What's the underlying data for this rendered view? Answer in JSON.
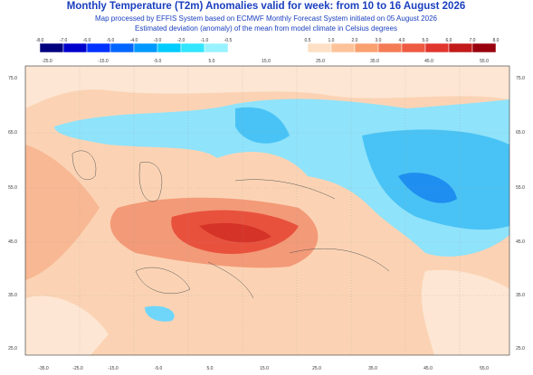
{
  "header": {
    "title": "Monthly Temperature (T2m) Anomalies valid for week: from 10 to 16 August 2026",
    "subtitle": "Map processed by EFFIS System based on ECMWF Monthly Forecast System initiated on 05 August 2026",
    "description": "Estimated deviation (anomaly) of the mean from model climate in Celsius degrees"
  },
  "legend": {
    "negative": [
      "-8.0",
      "-7.0",
      "-6.0",
      "-5.0",
      "-4.0",
      "-3.0",
      "-2.0",
      "-1.0",
      "-0.5"
    ],
    "positive": [
      "0.5",
      "1.0",
      "2.0",
      "3.0",
      "4.0",
      "5.0",
      "6.0",
      "7.0",
      "8.0"
    ]
  },
  "map": {
    "lon_top": [
      "-25.0",
      "-15.0",
      "-5.0",
      "5.0",
      "15.0",
      "25.0",
      "35.0",
      "45.0",
      "55.0"
    ],
    "lon_bottom": [
      "-35.0",
      "-25.0",
      "-15.0",
      "-5.0",
      "5.0",
      "15.0",
      "25.0",
      "35.0",
      "45.0",
      "55.0"
    ],
    "lat": [
      "75.0",
      "65.0",
      "55.0",
      "45.0",
      "35.0",
      "25.0"
    ]
  }
}
